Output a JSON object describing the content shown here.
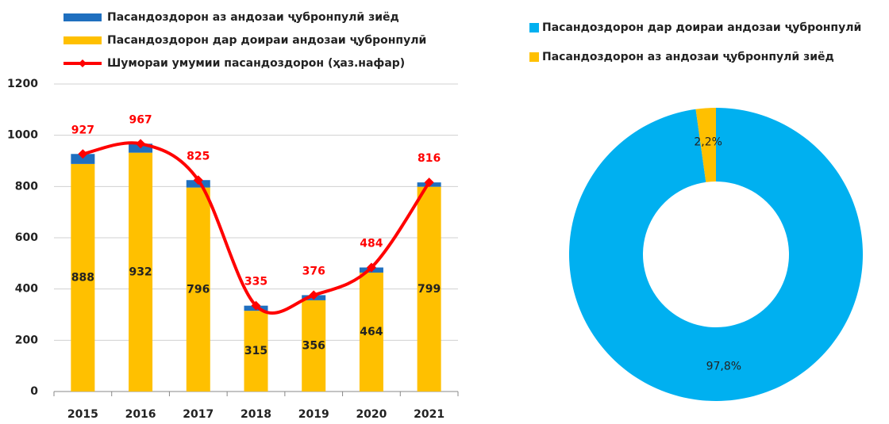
{
  "chart_data": [
    {
      "type": "bar",
      "categories": [
        "2015",
        "2016",
        "2017",
        "2018",
        "2019",
        "2020",
        "2021"
      ],
      "series": [
        {
          "name": "Пасандоздорон аз андозаи ҷубронпулӣ зиёд",
          "color": "#1f6fbf",
          "values": [
            39,
            35,
            29,
            20,
            20,
            20,
            17
          ],
          "stack": true,
          "labels": false
        },
        {
          "name": "Пасандоздорон дар доираи андозаи ҷубронпулӣ",
          "color": "#ffc000",
          "values": [
            888,
            932,
            796,
            315,
            356,
            464,
            799
          ],
          "stack": true,
          "labels": true
        },
        {
          "name": "Шумораи умумии пасандоздорон (ҳаз.нафар)",
          "color": "#ff0000",
          "values": [
            927,
            967,
            825,
            335,
            376,
            484,
            816
          ],
          "type": "line",
          "labels": true
        }
      ],
      "ylim": [
        0,
        1200
      ],
      "yticks": [
        0,
        200,
        400,
        600,
        800,
        1000,
        1200
      ],
      "grid": true
    },
    {
      "type": "donut",
      "categories": [
        "Пасандоздорон дар доираи андозаи ҷубронпулӣ",
        "Пасандоздорон аз андозаи ҷубронпулӣ зиёд"
      ],
      "values": [
        97.8,
        2.2
      ],
      "value_labels": [
        "97,8%",
        "2,2%"
      ],
      "colors": [
        "#00b0f0",
        "#ffc000"
      ]
    }
  ]
}
